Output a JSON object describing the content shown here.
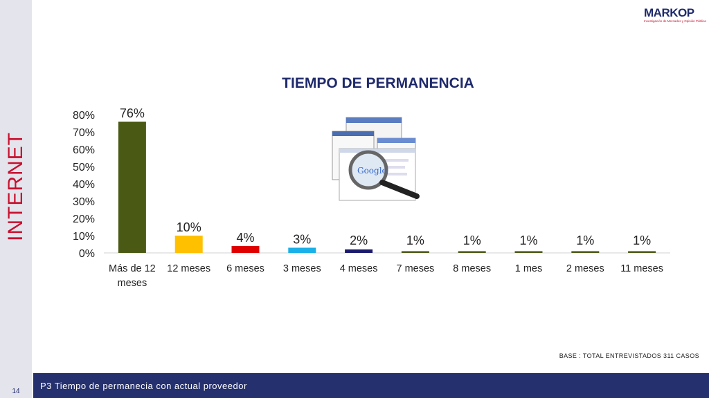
{
  "sidebar": {
    "title": "INTERNET"
  },
  "logo": {
    "name": "MARKOP",
    "tagline": "Investigación de Mercados y Opinión Pública"
  },
  "footer": {
    "page_number": "14",
    "caption": "P3 Tiempo de permanecia con actual proveedor"
  },
  "base_note": "BASE   : TOTAL ENTREVISTADOS 311 CASOS",
  "icons": {
    "decor": "search-magnifier-browser-icon"
  },
  "chart_data": {
    "type": "bar",
    "title": "TIEMPO DE PERMANENCIA",
    "categories": [
      "Más de 12 meses",
      "12 meses",
      "6 meses",
      "3 meses",
      "4 meses",
      "7 meses",
      "8 meses",
      "1 mes",
      "2 meses",
      "11 meses"
    ],
    "category_lines": [
      [
        "Más de 12",
        "meses"
      ],
      [
        "12 meses"
      ],
      [
        "6 meses"
      ],
      [
        "3 meses"
      ],
      [
        "4 meses"
      ],
      [
        "7 meses"
      ],
      [
        "8 meses"
      ],
      [
        "1 mes"
      ],
      [
        "2 meses"
      ],
      [
        "11 meses"
      ]
    ],
    "values": [
      76,
      10,
      4,
      3,
      2,
      1,
      1,
      1,
      1,
      1
    ],
    "labels": [
      "76%",
      "10%",
      "4%",
      "3%",
      "2%",
      "1%",
      "1%",
      "1%",
      "1%",
      "1%"
    ],
    "colors": [
      "#4a5a14",
      "#ffc000",
      "#e00000",
      "#1ab0e8",
      "#1a1a6e",
      "#4a5a14",
      "#4a5a14",
      "#4a5a14",
      "#4a5a14",
      "#4a5a14"
    ],
    "ylim": [
      0,
      80
    ],
    "yticks": [
      "0%",
      "10%",
      "20%",
      "30%",
      "40%",
      "50%",
      "60%",
      "70%",
      "80%"
    ],
    "xlabel": "",
    "ylabel": "",
    "grid": false
  }
}
